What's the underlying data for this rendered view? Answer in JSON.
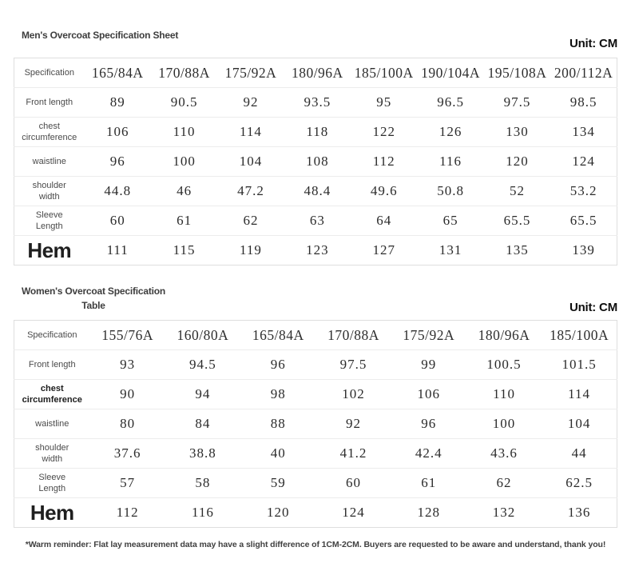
{
  "mens_table": {
    "title": "Men's Overcoat Specification Sheet",
    "unit_label": "Unit: CM",
    "header": [
      "Specification",
      "165/84A",
      "170/88A",
      "175/92A",
      "180/96A",
      "185/100A",
      "190/104A",
      "195/108A",
      "200/112A"
    ],
    "rows": [
      {
        "label": "Front length",
        "values": [
          "89",
          "90.5",
          "92",
          "93.5",
          "95",
          "96.5",
          "97.5",
          "98.5"
        ]
      },
      {
        "label": "chest\ncircumference",
        "values": [
          "106",
          "110",
          "114",
          "118",
          "122",
          "126",
          "130",
          "134"
        ]
      },
      {
        "label": "waistline",
        "values": [
          "96",
          "100",
          "104",
          "108",
          "112",
          "116",
          "120",
          "124"
        ]
      },
      {
        "label": "shoulder\nwidth",
        "values": [
          "44.8",
          "46",
          "47.2",
          "48.4",
          "49.6",
          "50.8",
          "52",
          "53.2"
        ]
      },
      {
        "label": "Sleeve\nLength",
        "values": [
          "60",
          "61",
          "62",
          "63",
          "64",
          "65",
          "65.5",
          "65.5"
        ]
      },
      {
        "label": "Hem",
        "big": true,
        "values": [
          "111",
          "115",
          "119",
          "123",
          "127",
          "131",
          "135",
          "139"
        ]
      }
    ]
  },
  "womens_table": {
    "title": "Women's Overcoat Specification\nTable",
    "unit_label": "Unit: CM",
    "header": [
      "Specification",
      "155/76A",
      "160/80A",
      "165/84A",
      "170/88A",
      "175/92A",
      "180/96A",
      "185/100A"
    ],
    "rows": [
      {
        "label": "Front length",
        "values": [
          "93",
          "94.5",
          "96",
          "97.5",
          "99",
          "100.5",
          "101.5"
        ]
      },
      {
        "label": "chest\ncircumference",
        "bold": true,
        "values": [
          "90",
          "94",
          "98",
          "102",
          "106",
          "110",
          "114"
        ]
      },
      {
        "label": "waistline",
        "values": [
          "80",
          "84",
          "88",
          "92",
          "96",
          "100",
          "104"
        ]
      },
      {
        "label": "shoulder\nwidth",
        "values": [
          "37.6",
          "38.8",
          "40",
          "41.2",
          "42.4",
          "43.6",
          "44"
        ]
      },
      {
        "label": "Sleeve\nLength",
        "values": [
          "57",
          "58",
          "59",
          "60",
          "61",
          "62",
          "62.5"
        ]
      },
      {
        "label": "Hem",
        "big": true,
        "values": [
          "112",
          "116",
          "120",
          "124",
          "128",
          "132",
          "136"
        ]
      }
    ]
  },
  "footer": {
    "note": "*Warm reminder: Flat lay measurement data may have a slight difference of 1CM-2CM. Buyers are requested to be aware and understand, thank you!"
  }
}
